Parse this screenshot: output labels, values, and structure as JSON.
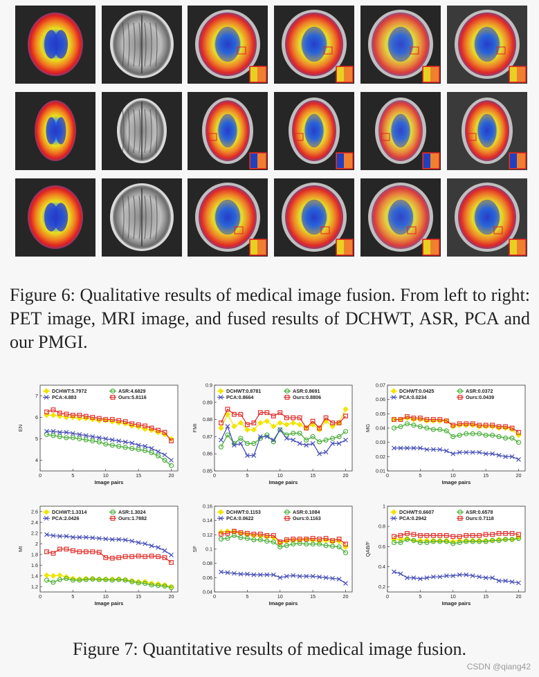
{
  "figure6": {
    "rows": 3,
    "columns": [
      "PET image",
      "MRI image",
      "DCHWT",
      "ASR",
      "PCA",
      "Ours"
    ],
    "caption": "Figure 6: Qualitative results of medical image fusion. From left to right: PET image, MRI image, and fused results of DCHWT, ASR, PCA and our PMGI."
  },
  "figure7": {
    "caption": "Figure 7: Quantitative results of medical image fusion."
  },
  "watermark": "CSDN @qiang42",
  "colors": {
    "DCHWT": "#f2e500",
    "ASR": "#4caf3c",
    "PCA": "#4a52b8",
    "Ours": "#e0302c"
  },
  "chart_data": [
    {
      "type": "line",
      "ylabel": "EN",
      "xlabel": "Image pairs",
      "ylim": [
        3.5,
        7.5
      ],
      "yticks": [
        4,
        5,
        6,
        7
      ],
      "xticks": [
        0,
        5,
        10,
        15,
        20
      ],
      "x": [
        1,
        2,
        3,
        4,
        5,
        6,
        7,
        8,
        9,
        10,
        11,
        12,
        13,
        14,
        15,
        16,
        17,
        18,
        19,
        20
      ],
      "series": [
        {
          "name": "DCHWT",
          "legend": "DCHWT:5.7972",
          "values": [
            6.1,
            6.1,
            6.05,
            6.0,
            6.0,
            5.95,
            5.95,
            5.9,
            5.85,
            5.85,
            5.8,
            5.75,
            5.7,
            5.6,
            5.55,
            5.45,
            5.4,
            5.3,
            5.2,
            5.0
          ]
        },
        {
          "name": "ASR",
          "legend": "ASR:4.6829",
          "values": [
            5.2,
            5.15,
            5.1,
            5.05,
            5.05,
            5.0,
            4.95,
            4.9,
            4.85,
            4.75,
            4.7,
            4.65,
            4.6,
            4.55,
            4.5,
            4.45,
            4.35,
            4.2,
            4.0,
            3.75
          ]
        },
        {
          "name": "PCA",
          "legend": "PCA:4.883",
          "values": [
            5.35,
            5.35,
            5.3,
            5.3,
            5.25,
            5.2,
            5.15,
            5.1,
            5.05,
            5.0,
            4.95,
            4.9,
            4.85,
            4.8,
            4.7,
            4.65,
            4.55,
            4.4,
            4.25,
            4.0
          ]
        },
        {
          "name": "Ours",
          "legend": "Ours:5.8116",
          "values": [
            6.25,
            6.35,
            6.2,
            6.15,
            6.1,
            6.1,
            6.05,
            6.0,
            5.95,
            5.9,
            5.9,
            5.85,
            5.8,
            5.7,
            5.65,
            5.6,
            5.5,
            5.4,
            5.3,
            4.9
          ]
        }
      ]
    },
    {
      "type": "line",
      "ylabel": "FMI",
      "xlabel": "Image pairs",
      "ylim": [
        0.85,
        0.9
      ],
      "yticks": [
        0.85,
        0.86,
        0.87,
        0.88,
        0.89,
        0.9
      ],
      "xticks": [
        0,
        5,
        10,
        15,
        20
      ],
      "x": [
        1,
        2,
        3,
        4,
        5,
        6,
        7,
        8,
        9,
        10,
        11,
        12,
        13,
        14,
        15,
        16,
        17,
        18,
        19,
        20
      ],
      "series": [
        {
          "name": "DCHWT",
          "legend": "DCHWT:0.8781",
          "values": [
            0.875,
            0.883,
            0.876,
            0.878,
            0.874,
            0.874,
            0.878,
            0.879,
            0.876,
            0.878,
            0.877,
            0.878,
            0.877,
            0.875,
            0.877,
            0.874,
            0.879,
            0.876,
            0.878,
            0.886
          ]
        },
        {
          "name": "ASR",
          "legend": "ASR:0.8691",
          "values": [
            0.864,
            0.871,
            0.866,
            0.869,
            0.866,
            0.866,
            0.869,
            0.871,
            0.867,
            0.874,
            0.871,
            0.872,
            0.872,
            0.868,
            0.87,
            0.867,
            0.868,
            0.869,
            0.87,
            0.873
          ]
        },
        {
          "name": "PCA",
          "legend": "PCA:0.8664",
          "values": [
            0.868,
            0.876,
            0.865,
            0.866,
            0.859,
            0.859,
            0.87,
            0.87,
            0.868,
            0.874,
            0.869,
            0.868,
            0.866,
            0.865,
            0.866,
            0.86,
            0.861,
            0.866,
            0.866,
            0.868
          ]
        },
        {
          "name": "Ours",
          "legend": "Ours:0.8806",
          "values": [
            0.878,
            0.886,
            0.883,
            0.883,
            0.877,
            0.878,
            0.884,
            0.884,
            0.882,
            0.884,
            0.881,
            0.881,
            0.881,
            0.875,
            0.879,
            0.875,
            0.881,
            0.878,
            0.878,
            0.882
          ]
        }
      ]
    },
    {
      "type": "line",
      "ylabel": "MG",
      "xlabel": "Image pairs",
      "ylim": [
        0.01,
        0.07
      ],
      "yticks": [
        0.01,
        0.02,
        0.03,
        0.04,
        0.05,
        0.06,
        0.07
      ],
      "xticks": [
        0,
        5,
        10,
        15,
        20
      ],
      "x": [
        1,
        2,
        3,
        4,
        5,
        6,
        7,
        8,
        9,
        10,
        11,
        12,
        13,
        14,
        15,
        16,
        17,
        18,
        19,
        20
      ],
      "series": [
        {
          "name": "DCHWT",
          "legend": "DCHWT:0.0425",
          "values": [
            0.046,
            0.046,
            0.047,
            0.046,
            0.046,
            0.045,
            0.045,
            0.045,
            0.045,
            0.041,
            0.042,
            0.042,
            0.042,
            0.041,
            0.041,
            0.041,
            0.04,
            0.04,
            0.039,
            0.035
          ]
        },
        {
          "name": "ASR",
          "legend": "ASR:0.0372",
          "values": [
            0.04,
            0.041,
            0.043,
            0.042,
            0.041,
            0.04,
            0.039,
            0.039,
            0.038,
            0.034,
            0.035,
            0.036,
            0.036,
            0.036,
            0.035,
            0.035,
            0.034,
            0.033,
            0.033,
            0.03
          ]
        },
        {
          "name": "PCA",
          "legend": "PCA:0.0234",
          "values": [
            0.026,
            0.026,
            0.026,
            0.026,
            0.026,
            0.025,
            0.025,
            0.025,
            0.024,
            0.022,
            0.023,
            0.023,
            0.023,
            0.023,
            0.022,
            0.022,
            0.021,
            0.02,
            0.02,
            0.018
          ]
        },
        {
          "name": "Ours",
          "legend": "Ours:0.0439",
          "values": [
            0.046,
            0.046,
            0.048,
            0.047,
            0.047,
            0.046,
            0.046,
            0.046,
            0.045,
            0.042,
            0.043,
            0.043,
            0.043,
            0.042,
            0.042,
            0.042,
            0.041,
            0.041,
            0.04,
            0.037
          ]
        }
      ]
    },
    {
      "type": "line",
      "ylabel": "MI",
      "xlabel": "Image pairs",
      "ylim": [
        1.1,
        2.7
      ],
      "yticks": [
        1.2,
        1.4,
        1.6,
        1.8,
        2.0,
        2.2,
        2.4,
        2.6
      ],
      "xticks": [
        0,
        5,
        10,
        15,
        20
      ],
      "x": [
        1,
        2,
        3,
        4,
        5,
        6,
        7,
        8,
        9,
        10,
        11,
        12,
        13,
        14,
        15,
        16,
        17,
        18,
        19,
        20
      ],
      "series": [
        {
          "name": "DCHWT",
          "legend": "DCHWT:1.3314",
          "values": [
            1.41,
            1.4,
            1.41,
            1.38,
            1.35,
            1.34,
            1.35,
            1.35,
            1.34,
            1.34,
            1.34,
            1.34,
            1.33,
            1.31,
            1.29,
            1.29,
            1.26,
            1.25,
            1.23,
            1.2
          ]
        },
        {
          "name": "ASR",
          "legend": "ASR:1.3024",
          "values": [
            1.32,
            1.28,
            1.33,
            1.35,
            1.32,
            1.32,
            1.33,
            1.34,
            1.33,
            1.33,
            1.32,
            1.33,
            1.32,
            1.29,
            1.27,
            1.26,
            1.23,
            1.22,
            1.21,
            1.18
          ]
        },
        {
          "name": "PCA",
          "legend": "PCA:2.0426",
          "values": [
            2.17,
            2.15,
            2.14,
            2.14,
            2.12,
            2.12,
            2.12,
            2.11,
            2.1,
            2.09,
            2.08,
            2.08,
            2.07,
            2.05,
            2.02,
            2.0,
            1.96,
            1.93,
            1.87,
            1.79
          ]
        },
        {
          "name": "Ours",
          "legend": "Ours:1.7882",
          "values": [
            1.85,
            1.82,
            1.9,
            1.9,
            1.87,
            1.85,
            1.85,
            1.85,
            1.84,
            1.74,
            1.73,
            1.74,
            1.76,
            1.76,
            1.77,
            1.76,
            1.77,
            1.76,
            1.74,
            1.65
          ]
        }
      ]
    },
    {
      "type": "line",
      "ylabel": "SF",
      "xlabel": "Image pairs",
      "ylim": [
        0.04,
        0.16
      ],
      "yticks": [
        0.04,
        0.06,
        0.08,
        0.1,
        0.12,
        0.14,
        0.16
      ],
      "xticks": [
        0,
        5,
        10,
        15,
        20
      ],
      "x": [
        1,
        2,
        3,
        4,
        5,
        6,
        7,
        8,
        9,
        10,
        11,
        12,
        13,
        14,
        15,
        16,
        17,
        18,
        19,
        20
      ],
      "series": [
        {
          "name": "DCHWT",
          "legend": "DCHWT:0.1153",
          "values": [
            0.124,
            0.125,
            0.124,
            0.122,
            0.12,
            0.119,
            0.118,
            0.117,
            0.116,
            0.108,
            0.111,
            0.112,
            0.112,
            0.113,
            0.112,
            0.111,
            0.112,
            0.11,
            0.111,
            0.103
          ]
        },
        {
          "name": "ASR",
          "legend": "ASR:0.1084",
          "values": [
            0.114,
            0.115,
            0.119,
            0.116,
            0.115,
            0.113,
            0.113,
            0.111,
            0.11,
            0.103,
            0.105,
            0.107,
            0.108,
            0.107,
            0.107,
            0.107,
            0.105,
            0.104,
            0.103,
            0.095
          ]
        },
        {
          "name": "PCA",
          "legend": "PCA:0.0622",
          "values": [
            0.068,
            0.067,
            0.066,
            0.065,
            0.065,
            0.064,
            0.064,
            0.064,
            0.064,
            0.06,
            0.062,
            0.063,
            0.062,
            0.062,
            0.062,
            0.061,
            0.06,
            0.059,
            0.058,
            0.052
          ]
        },
        {
          "name": "Ours",
          "legend": "Ours:0.1163",
          "values": [
            0.121,
            0.122,
            0.125,
            0.123,
            0.122,
            0.121,
            0.121,
            0.119,
            0.119,
            0.11,
            0.113,
            0.114,
            0.114,
            0.114,
            0.115,
            0.114,
            0.115,
            0.112,
            0.114,
            0.107
          ]
        }
      ]
    },
    {
      "type": "line",
      "ylabel": "QAB/F",
      "xlabel": "Image pairs",
      "ylim": [
        0.15,
        1.0
      ],
      "yticks": [
        0.2,
        0.4,
        0.6,
        0.8,
        1.0
      ],
      "xticks": [
        0,
        5,
        10,
        15,
        20
      ],
      "x": [
        1,
        2,
        3,
        4,
        5,
        6,
        7,
        8,
        9,
        10,
        11,
        12,
        13,
        14,
        15,
        16,
        17,
        18,
        19,
        20
      ],
      "series": [
        {
          "name": "DCHWT",
          "legend": "DCHWT:0.6607",
          "values": [
            0.67,
            0.67,
            0.68,
            0.66,
            0.66,
            0.66,
            0.66,
            0.66,
            0.66,
            0.65,
            0.66,
            0.66,
            0.66,
            0.66,
            0.66,
            0.66,
            0.67,
            0.67,
            0.67,
            0.69
          ]
        },
        {
          "name": "ASR",
          "legend": "ASR:0.6578",
          "values": [
            0.64,
            0.64,
            0.67,
            0.66,
            0.64,
            0.64,
            0.65,
            0.65,
            0.65,
            0.63,
            0.64,
            0.65,
            0.65,
            0.65,
            0.65,
            0.66,
            0.66,
            0.67,
            0.67,
            0.68
          ]
        },
        {
          "name": "PCA",
          "legend": "PCA:0.2942",
          "values": [
            0.35,
            0.33,
            0.29,
            0.29,
            0.28,
            0.29,
            0.3,
            0.3,
            0.31,
            0.31,
            0.32,
            0.32,
            0.31,
            0.3,
            0.29,
            0.29,
            0.26,
            0.26,
            0.25,
            0.24
          ]
        },
        {
          "name": "Ours",
          "legend": "Ours:0.7118",
          "values": [
            0.7,
            0.71,
            0.73,
            0.72,
            0.71,
            0.71,
            0.71,
            0.71,
            0.71,
            0.7,
            0.7,
            0.71,
            0.71,
            0.71,
            0.72,
            0.72,
            0.73,
            0.73,
            0.73,
            0.72
          ]
        }
      ]
    }
  ]
}
